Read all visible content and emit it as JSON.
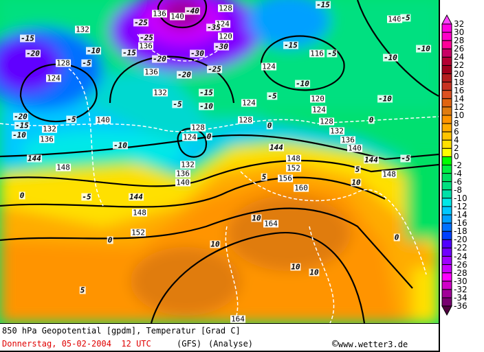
{
  "map": {
    "geopotential_labels": [
      "136",
      "140",
      "128",
      "132",
      "136",
      "124",
      "120",
      "128",
      "124",
      "136",
      "124",
      "116",
      "120",
      "124",
      "132",
      "124",
      "128",
      "128",
      "124",
      "140",
      "132",
      "136",
      "128",
      "132",
      "136",
      "140",
      "148",
      "152",
      "156",
      "160",
      "132",
      "136",
      "140",
      "148",
      "148",
      "152",
      "164",
      "164",
      "148",
      "140"
    ],
    "temperature_labels": [
      "-40",
      "-35",
      "-30",
      "-30",
      "-25",
      "-25",
      "-20",
      "-25",
      "-20",
      "-15",
      "-20",
      "-15",
      "-10",
      "-5",
      "-15",
      "-5",
      "-15",
      "-5",
      "-10",
      "-10",
      "-10",
      "-5",
      "-15",
      "-10",
      "-5",
      "0",
      "-10",
      "-5",
      "-20",
      "-15",
      "-10",
      "0",
      "-10",
      "0",
      "-5",
      "5",
      "10",
      "5",
      "144",
      "144",
      "144",
      "144",
      "0",
      "-5",
      "0",
      "10",
      "10",
      "10",
      "10",
      "0",
      "5"
    ]
  },
  "footer": {
    "title": "850 hPa Geopotential [gpdm], Temperatur [Grad C]",
    "date": "Donnerstag, 05-02-2004  12 UTC",
    "model": "(GFS)",
    "run": "(Analyse)",
    "copyright_symbol": "©",
    "website": "www.wetter3.de"
  },
  "legend": {
    "labels": [
      "32",
      "30",
      "28",
      "26",
      "24",
      "22",
      "20",
      "18",
      "16",
      "14",
      "12",
      "10",
      "8",
      "6",
      "4",
      "2",
      "0",
      "-2",
      "-4",
      "-6",
      "-8",
      "-10",
      "-12",
      "-14",
      "-16",
      "-18",
      "-20",
      "-22",
      "-24",
      "-26",
      "-28",
      "-30",
      "-32",
      "-34",
      "-36"
    ],
    "colors": [
      "#ff00e0",
      "#ff00c8",
      "#ff0098",
      "#c80064",
      "#b40032",
      "#a0001c",
      "#b41e1e",
      "#c83220",
      "#dc5020",
      "#e06410",
      "#e07c10",
      "#ff9400",
      "#ffac00",
      "#ffc400",
      "#ffe000",
      "#ffff00",
      "#00ff00",
      "#00f040",
      "#00e060",
      "#00e080",
      "#00e0a8",
      "#00e8e8",
      "#00c8ff",
      "#00a0ff",
      "#0070ff",
      "#0040ff",
      "#5000ff",
      "#7000ff",
      "#a000ff",
      "#c800ff",
      "#ff00ff",
      "#d000c8",
      "#a00098",
      "#780070"
    ],
    "top_arrow_color": "#ff40ff",
    "bottom_arrow_color": "#500040"
  }
}
